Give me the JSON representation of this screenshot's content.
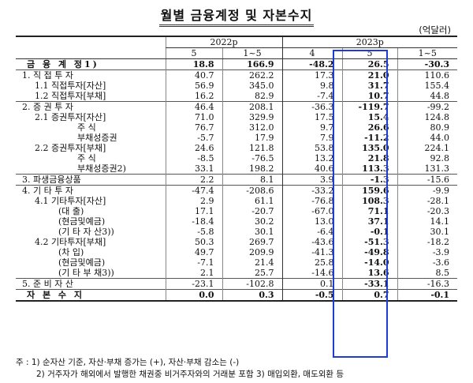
{
  "title": "월별 금융계정 및 자본수지",
  "unit": "(억달러)",
  "header": {
    "group_2022": "2022p",
    "group_2023": "2023p",
    "cols": [
      "5",
      "1~5",
      "4",
      "5",
      "1~5"
    ]
  },
  "rows": [
    {
      "label": "금 융 계 정1)",
      "v": [
        "18.8",
        "166.9",
        "-48.2",
        "26.5",
        "-30.3"
      ]
    },
    {
      "label": "1. 직 접 투 자",
      "v": [
        "40.7",
        "262.2",
        "17.3",
        "21.0",
        "110.6"
      ]
    },
    {
      "label": "1.1 직접투자[자산]",
      "v": [
        "56.9",
        "345.0",
        "9.8",
        "31.7",
        "155.4"
      ]
    },
    {
      "label": "1.2 직접투자[부채]",
      "v": [
        "16.2",
        "82.9",
        "-7.4",
        "10.7",
        "44.8"
      ]
    },
    {
      "label": "2. 증 권 투 자",
      "v": [
        "46.4",
        "208.1",
        "-36.3",
        "-119.7",
        "-99.2"
      ]
    },
    {
      "label": "2.1 증권투자[자산]",
      "v": [
        "71.0",
        "329.9",
        "17.5",
        "15.4",
        "124.8"
      ]
    },
    {
      "label": "주 식",
      "v": [
        "76.7",
        "312.0",
        "9.7",
        "26.6",
        "80.9"
      ]
    },
    {
      "label": "부채성증권",
      "v": [
        "-5.7",
        "17.9",
        "7.9",
        "-11.2",
        "44.0"
      ]
    },
    {
      "label": "2.2 증권투자[부채]",
      "v": [
        "24.6",
        "121.8",
        "53.8",
        "135.0",
        "224.1"
      ]
    },
    {
      "label": "주 식",
      "v": [
        "-8.5",
        "-76.5",
        "13.2",
        "21.8",
        "92.8"
      ]
    },
    {
      "label": "부채성증권2)",
      "v": [
        "33.1",
        "198.2",
        "40.6",
        "113.3",
        "131.3"
      ]
    },
    {
      "label": "3. 파생금융상품",
      "v": [
        "2.2",
        "8.1",
        "3.9",
        "-1.3",
        "-15.6"
      ]
    },
    {
      "label": "4. 기 타 투 자",
      "v": [
        "-47.4",
        "-208.6",
        "-33.2",
        "159.6",
        "-9.9"
      ]
    },
    {
      "label": "4.1 기타투자[자산]",
      "v": [
        "2.9",
        "61.1",
        "-76.8",
        "108.3",
        "-28.1"
      ]
    },
    {
      "label": "(대 출)",
      "v": [
        "17.1",
        "-20.7",
        "-67.0",
        "71.1",
        "-20.3"
      ]
    },
    {
      "label": "(현금및예금)",
      "v": [
        "-18.4",
        "30.2",
        "13.0",
        "37.1",
        "14.1"
      ]
    },
    {
      "label": "(기 타 자 산3))",
      "v": [
        "-5.8",
        "30.1",
        "-6.4",
        "-0.1",
        "30.1"
      ]
    },
    {
      "label": "4.2 기타투자[부채]",
      "v": [
        "50.3",
        "269.7",
        "-43.6",
        "-51.3",
        "-18.2"
      ]
    },
    {
      "label": "(차 입)",
      "v": [
        "49.7",
        "209.9",
        "-41.3",
        "-49.8",
        "-3.9"
      ]
    },
    {
      "label": "(현금및예금)",
      "v": [
        "-7.1",
        "21.4",
        "25.8",
        "-14.0",
        "-3.6"
      ]
    },
    {
      "label": "(기 타 부 채3))",
      "v": [
        "2.1",
        "25.7",
        "-14.6",
        "13.6",
        "8.5"
      ]
    },
    {
      "label": "5. 준 비 자 산",
      "v": [
        "-23.1",
        "-102.8",
        "0.1",
        "-33.1",
        "-16.3"
      ]
    },
    {
      "label": "자 본 수 지",
      "v": [
        "0.0",
        "0.3",
        "-0.5",
        "0.7",
        "-0.1"
      ]
    }
  ],
  "notes": [
    "주 : 1) 순자산 기준, 자산·부채 증가는 (+), 자산·부채 감소는 (-)",
    "2) 거주자가 해외에서 발행한 채권중 비거주자와의 거래분 포함  3) 매입외환, 매도외환 등"
  ]
}
